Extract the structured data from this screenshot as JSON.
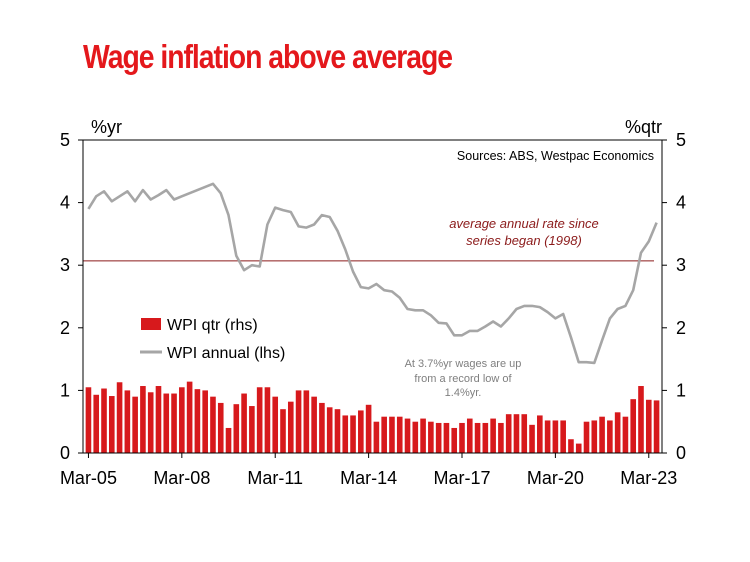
{
  "chart_data": {
    "type": "bar+line",
    "title": "Wage inflation above average",
    "y_left_label": "%yr",
    "y_right_label": "%qtr",
    "ylim": [
      0,
      5
    ],
    "y_ticks": [
      "0",
      "1",
      "2",
      "3",
      "4",
      "5"
    ],
    "x_tick_labels": [
      "Mar-05",
      "Mar-08",
      "Mar-11",
      "Mar-14",
      "Mar-17",
      "Mar-20",
      "Mar-23"
    ],
    "source": "Sources: ABS, Westpac Economics",
    "average_line": {
      "value": 3.07,
      "label_lines": [
        "average annual rate since",
        "series began (1998)"
      ],
      "color": "#8b1a1a"
    },
    "annotation_lines": [
      "At 3.7%yr wages are up",
      "from a record low of",
      "1.4%yr."
    ],
    "series": [
      {
        "name": "WPI qtr (rhs)",
        "kind": "bar",
        "axis": "right",
        "color": "#d7191c",
        "values": [
          1.05,
          0.93,
          1.03,
          0.91,
          1.13,
          1.0,
          0.9,
          1.07,
          0.97,
          1.07,
          0.95,
          0.95,
          1.05,
          1.14,
          1.02,
          1.0,
          0.9,
          0.8,
          0.4,
          0.78,
          0.95,
          0.75,
          1.05,
          1.05,
          0.9,
          0.7,
          0.82,
          1.0,
          1.0,
          0.9,
          0.8,
          0.73,
          0.7,
          0.6,
          0.6,
          0.68,
          0.77,
          0.5,
          0.58,
          0.58,
          0.58,
          0.55,
          0.5,
          0.55,
          0.5,
          0.48,
          0.48,
          0.4,
          0.48,
          0.55,
          0.48,
          0.48,
          0.55,
          0.48,
          0.62,
          0.62,
          0.62,
          0.45,
          0.6,
          0.52,
          0.52,
          0.52,
          0.22,
          0.15,
          0.5,
          0.52,
          0.58,
          0.52,
          0.65,
          0.58,
          0.86,
          1.07,
          0.85,
          0.84
        ]
      },
      {
        "name": "WPI annual (lhs)",
        "kind": "line",
        "axis": "left",
        "color": "#a6a6a6",
        "values": [
          3.9,
          4.1,
          4.18,
          4.02,
          4.1,
          4.18,
          4.02,
          4.2,
          4.05,
          4.12,
          4.2,
          4.05,
          4.1,
          4.15,
          4.2,
          4.25,
          4.3,
          4.15,
          3.8,
          3.15,
          2.92,
          3.0,
          2.98,
          3.65,
          3.92,
          3.88,
          3.85,
          3.62,
          3.6,
          3.65,
          3.8,
          3.77,
          3.55,
          3.25,
          2.9,
          2.65,
          2.63,
          2.7,
          2.6,
          2.58,
          2.48,
          2.3,
          2.28,
          2.28,
          2.2,
          2.08,
          2.07,
          1.88,
          1.88,
          1.95,
          1.95,
          2.02,
          2.1,
          2.02,
          2.15,
          2.3,
          2.35,
          2.35,
          2.33,
          2.25,
          2.15,
          2.22,
          1.85,
          1.45,
          1.45,
          1.44,
          1.8,
          2.15,
          2.3,
          2.35,
          2.6,
          3.2,
          3.38,
          3.68
        ]
      }
    ],
    "legend_position": "middle-left",
    "grid": false
  }
}
